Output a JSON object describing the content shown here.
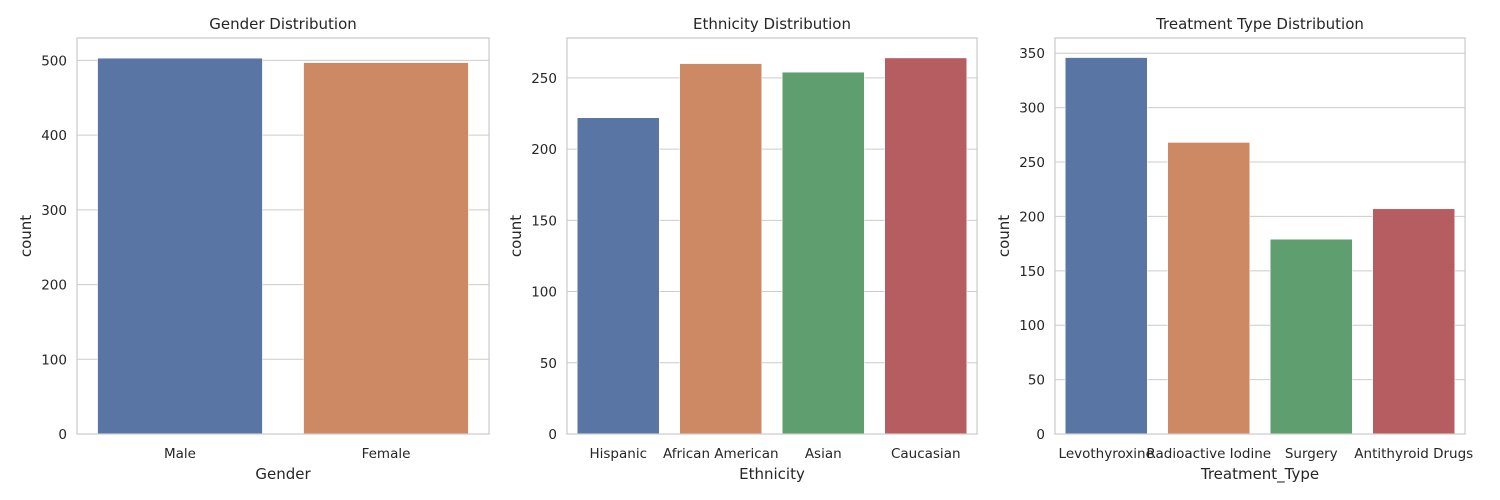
{
  "chart_data": [
    {
      "type": "bar",
      "title": "Gender Distribution",
      "xlabel": "Gender",
      "ylabel": "count",
      "categories": [
        "Male",
        "Female"
      ],
      "values": [
        503,
        497
      ],
      "ylim": [
        0,
        530
      ],
      "yticks": [
        0,
        100,
        200,
        300,
        400,
        500
      ],
      "colors": [
        "#5875a4",
        "#cc8963"
      ],
      "grid": true,
      "legend": "none"
    },
    {
      "type": "bar",
      "title": "Ethnicity Distribution",
      "xlabel": "Ethnicity",
      "ylabel": "count",
      "categories": [
        "Hispanic",
        "African American",
        "Asian",
        "Caucasian"
      ],
      "values": [
        222,
        260,
        254,
        264
      ],
      "ylim": [
        0,
        278
      ],
      "yticks": [
        0,
        50,
        100,
        150,
        200,
        250
      ],
      "colors": [
        "#5875a4",
        "#cc8963",
        "#5f9e6e",
        "#b55d60"
      ],
      "grid": true,
      "legend": "none"
    },
    {
      "type": "bar",
      "title": "Treatment Type Distribution",
      "xlabel": "Treatment_Type",
      "ylabel": "count",
      "categories": [
        "Levothyroxine",
        "Radioactive Iodine",
        "Surgery",
        "Antithyroid Drugs"
      ],
      "values": [
        346,
        268,
        179,
        207
      ],
      "ylim": [
        0,
        364
      ],
      "yticks": [
        0,
        50,
        100,
        150,
        200,
        250,
        300,
        350
      ],
      "colors": [
        "#5875a4",
        "#cc8963",
        "#5f9e6e",
        "#b55d60"
      ],
      "grid": true,
      "legend": "none"
    }
  ]
}
